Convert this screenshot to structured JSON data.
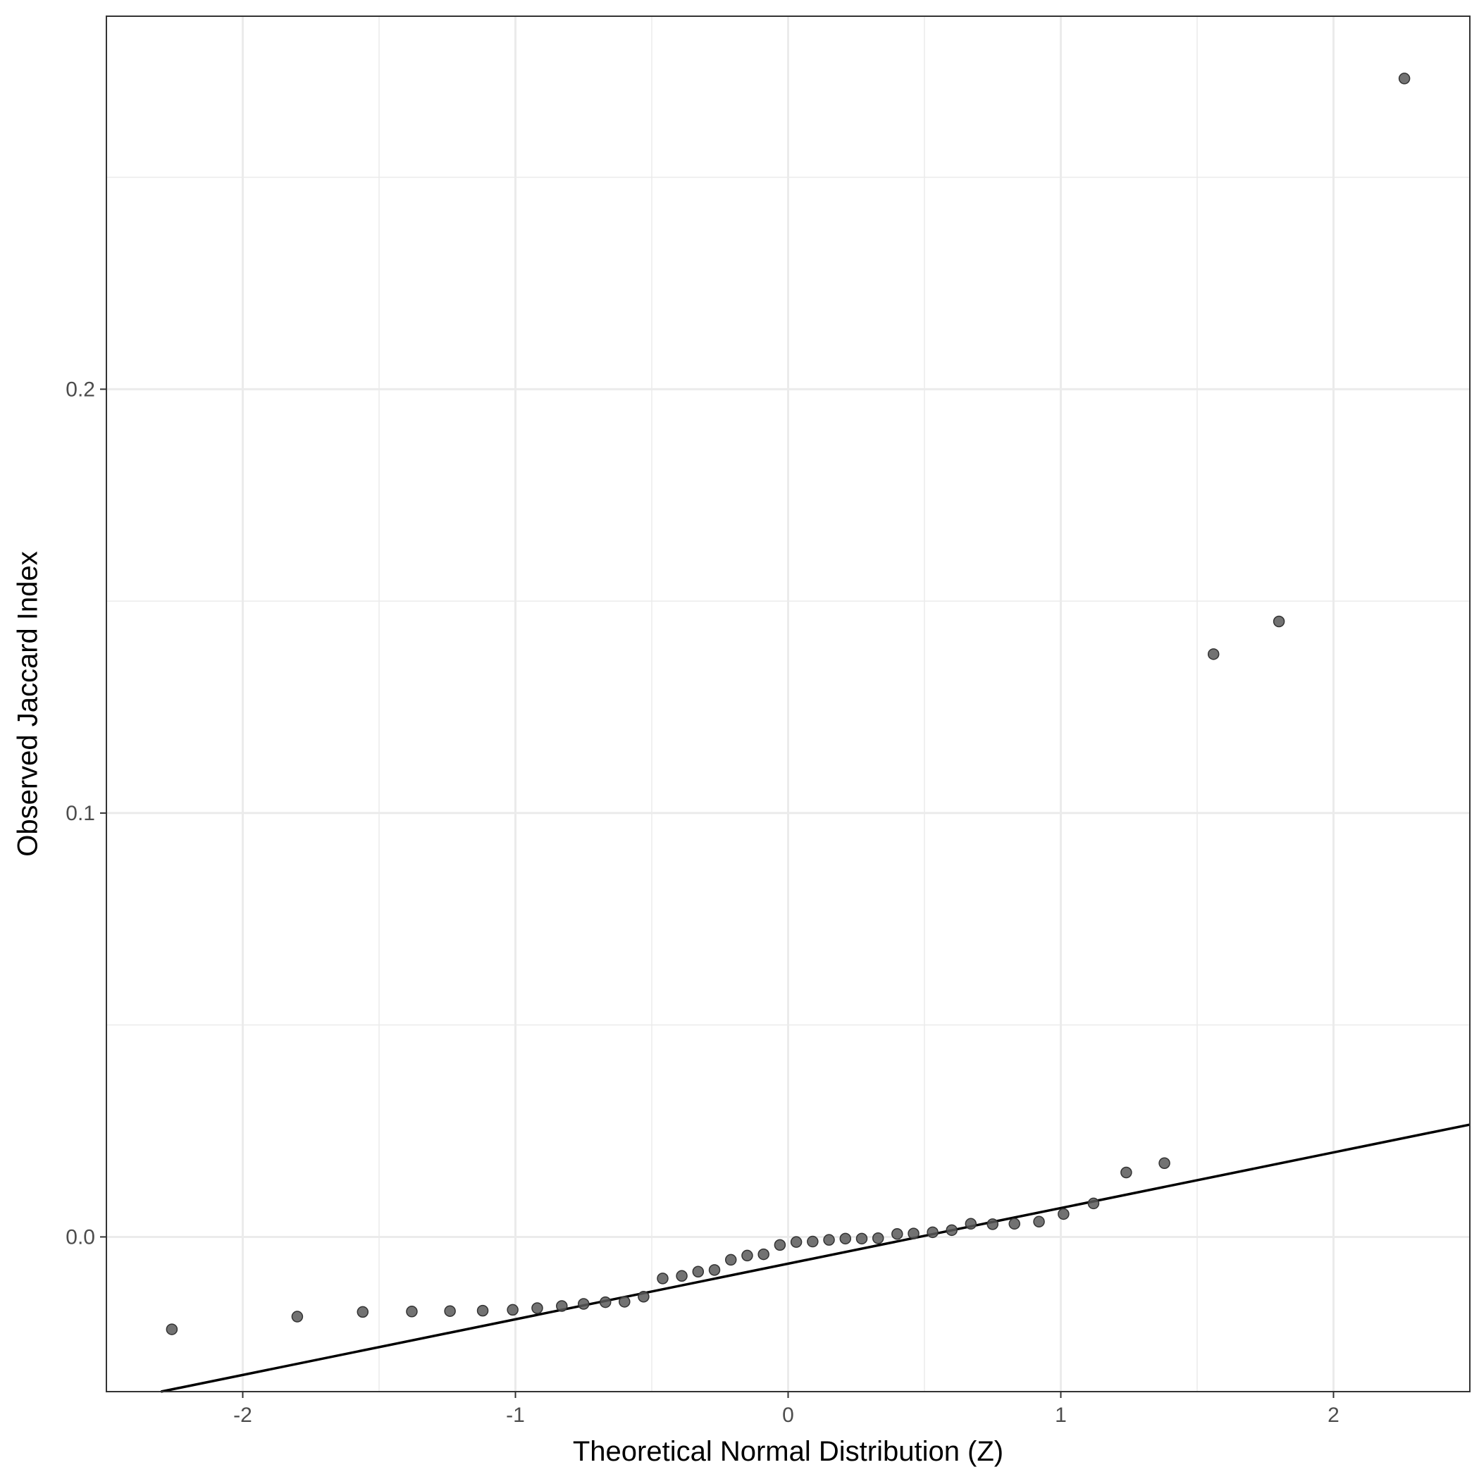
{
  "chart_data": {
    "type": "scatter",
    "title": "",
    "xlabel": "Theoretical Normal Distribution (Z)",
    "ylabel": "Observed Jaccard Index",
    "xlim": [
      -2.5,
      2.5
    ],
    "ylim": [
      -0.0365,
      0.288
    ],
    "x_ticks": [
      -2,
      -1,
      0,
      1,
      2
    ],
    "x_tick_labels": [
      "-2",
      "-1",
      "0",
      "1",
      "2"
    ],
    "y_ticks": [
      0.0,
      0.1,
      0.2
    ],
    "y_tick_labels": [
      "0.0",
      "0.1",
      "0.2"
    ],
    "grid": true,
    "legend": "none",
    "reference_line": {
      "points": [
        [
          -2.3,
          -0.0365
        ],
        [
          2.5,
          0.0265
        ]
      ]
    },
    "points": [
      [
        -2.26,
        -0.0218
      ],
      [
        -1.8,
        -0.0188
      ],
      [
        -1.56,
        -0.0177
      ],
      [
        -1.38,
        -0.0176
      ],
      [
        -1.24,
        -0.0175
      ],
      [
        -1.12,
        -0.0174
      ],
      [
        -1.01,
        -0.0172
      ],
      [
        -0.92,
        -0.0168
      ],
      [
        -0.83,
        -0.0163
      ],
      [
        -0.75,
        -0.0158
      ],
      [
        -0.67,
        -0.0154
      ],
      [
        -0.6,
        -0.0153
      ],
      [
        -0.53,
        -0.0141
      ],
      [
        -0.46,
        -0.0098
      ],
      [
        -0.39,
        -0.0092
      ],
      [
        -0.33,
        -0.0082
      ],
      [
        -0.27,
        -0.0078
      ],
      [
        -0.21,
        -0.0054
      ],
      [
        -0.15,
        -0.0044
      ],
      [
        -0.09,
        -0.0041
      ],
      [
        -0.03,
        -0.0019
      ],
      [
        0.03,
        -0.0012
      ],
      [
        0.09,
        -0.0011
      ],
      [
        0.15,
        -0.0007
      ],
      [
        0.21,
        -0.0004
      ],
      [
        0.27,
        -0.0004
      ],
      [
        0.33,
        -0.0003
      ],
      [
        0.4,
        0.0007
      ],
      [
        0.46,
        0.0008
      ],
      [
        0.53,
        0.0011
      ],
      [
        0.6,
        0.0016
      ],
      [
        0.67,
        0.0031
      ],
      [
        0.75,
        0.003
      ],
      [
        0.83,
        0.0031
      ],
      [
        0.92,
        0.0036
      ],
      [
        1.01,
        0.0054
      ],
      [
        1.12,
        0.0079
      ],
      [
        1.24,
        0.0152
      ],
      [
        1.38,
        0.0174
      ],
      [
        1.56,
        0.1375
      ],
      [
        1.8,
        0.1452
      ],
      [
        2.26,
        0.2733
      ]
    ],
    "colors": {
      "point": "#595959",
      "reference_line": "#000000",
      "grid": "#ebebeb"
    }
  }
}
